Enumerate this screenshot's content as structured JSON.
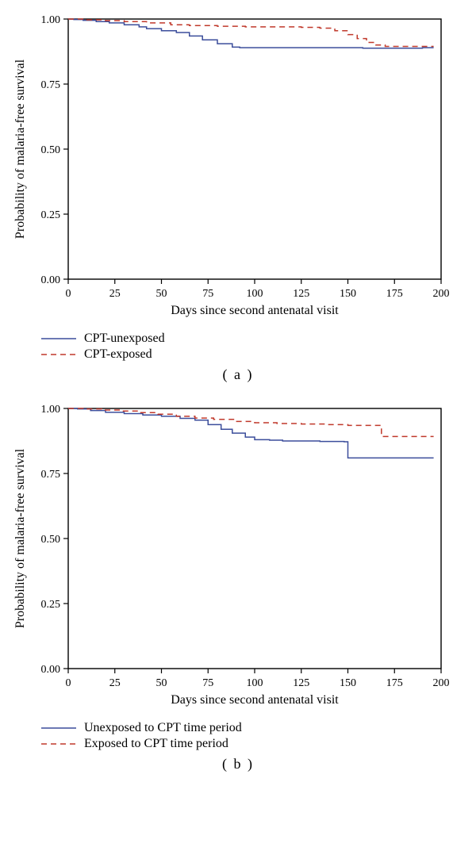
{
  "panel_a": {
    "type": "survival-step",
    "xlabel": "Days since second antenatal visit",
    "ylabel": "Probability of malaria-free survival",
    "xlim": [
      0,
      200
    ],
    "ylim": [
      0,
      1.0
    ],
    "xtick_step": 25,
    "ytick_step": 0.25,
    "ytick_labels": [
      "0.00",
      "0.25",
      "0.50",
      "0.75",
      "1.00"
    ],
    "xtick_labels": [
      "0",
      "25",
      "50",
      "75",
      "100",
      "125",
      "150",
      "175",
      "200"
    ],
    "background_color": "#ffffff",
    "frame_color": "#000000",
    "axis_label_fontsize": 16,
    "tick_fontsize": 14,
    "series": [
      {
        "name": "CPT-unexposed",
        "color": "#3b4d9b",
        "dash": "solid",
        "width": 1.5,
        "points": [
          [
            0,
            1.0
          ],
          [
            3,
            0.998
          ],
          [
            8,
            0.995
          ],
          [
            15,
            0.99
          ],
          [
            22,
            0.985
          ],
          [
            30,
            0.978
          ],
          [
            38,
            0.97
          ],
          [
            42,
            0.963
          ],
          [
            50,
            0.955
          ],
          [
            58,
            0.948
          ],
          [
            65,
            0.935
          ],
          [
            72,
            0.92
          ],
          [
            80,
            0.905
          ],
          [
            88,
            0.892
          ],
          [
            92,
            0.89
          ],
          [
            100,
            0.89
          ],
          [
            120,
            0.89
          ],
          [
            140,
            0.89
          ],
          [
            155,
            0.89
          ],
          [
            158,
            0.888
          ],
          [
            165,
            0.888
          ],
          [
            175,
            0.888
          ],
          [
            190,
            0.89
          ],
          [
            196,
            0.89
          ]
        ]
      },
      {
        "name": "CPT-exposed",
        "color": "#c0392b",
        "dash": "dashed",
        "width": 1.5,
        "points": [
          [
            0,
            1.0
          ],
          [
            10,
            0.997
          ],
          [
            20,
            0.994
          ],
          [
            30,
            0.99
          ],
          [
            42,
            0.985
          ],
          [
            55,
            0.978
          ],
          [
            65,
            0.975
          ],
          [
            80,
            0.972
          ],
          [
            95,
            0.97
          ],
          [
            110,
            0.97
          ],
          [
            125,
            0.968
          ],
          [
            135,
            0.965
          ],
          [
            143,
            0.955
          ],
          [
            150,
            0.94
          ],
          [
            155,
            0.925
          ],
          [
            160,
            0.91
          ],
          [
            165,
            0.9
          ],
          [
            170,
            0.895
          ],
          [
            180,
            0.895
          ],
          [
            196,
            0.895
          ]
        ]
      }
    ],
    "legend_items": [
      {
        "label": "CPT-unexposed",
        "color": "#3b4d9b",
        "dash": "solid"
      },
      {
        "label": "CPT-exposed",
        "color": "#c0392b",
        "dash": "dashed"
      }
    ],
    "panel_tag": "( a )"
  },
  "panel_b": {
    "type": "survival-step",
    "xlabel": "Days since second antenatal visit",
    "ylabel": "Probability of malaria-free survival",
    "xlim": [
      0,
      200
    ],
    "ylim": [
      0,
      1.0
    ],
    "xtick_step": 25,
    "ytick_step": 0.25,
    "ytick_labels": [
      "0.00",
      "0.25",
      "0.50",
      "0.75",
      "1.00"
    ],
    "xtick_labels": [
      "0",
      "25",
      "50",
      "75",
      "100",
      "125",
      "150",
      "175",
      "200"
    ],
    "background_color": "#ffffff",
    "frame_color": "#000000",
    "axis_label_fontsize": 16,
    "tick_fontsize": 14,
    "series": [
      {
        "name": "Unexposed to CPT time period",
        "color": "#3b4d9b",
        "dash": "solid",
        "width": 1.5,
        "points": [
          [
            0,
            1.0
          ],
          [
            5,
            0.998
          ],
          [
            12,
            0.992
          ],
          [
            20,
            0.985
          ],
          [
            30,
            0.98
          ],
          [
            40,
            0.975
          ],
          [
            50,
            0.97
          ],
          [
            60,
            0.962
          ],
          [
            68,
            0.955
          ],
          [
            75,
            0.938
          ],
          [
            82,
            0.92
          ],
          [
            88,
            0.905
          ],
          [
            95,
            0.89
          ],
          [
            100,
            0.88
          ],
          [
            108,
            0.878
          ],
          [
            115,
            0.875
          ],
          [
            125,
            0.875
          ],
          [
            135,
            0.873
          ],
          [
            148,
            0.872
          ],
          [
            150,
            0.81
          ],
          [
            155,
            0.81
          ],
          [
            165,
            0.81
          ],
          [
            180,
            0.81
          ],
          [
            196,
            0.81
          ]
        ]
      },
      {
        "name": "Exposed to CPT time period",
        "color": "#c0392b",
        "dash": "dashed",
        "width": 1.5,
        "points": [
          [
            0,
            1.0
          ],
          [
            8,
            0.998
          ],
          [
            18,
            0.994
          ],
          [
            28,
            0.99
          ],
          [
            38,
            0.984
          ],
          [
            48,
            0.978
          ],
          [
            58,
            0.97
          ],
          [
            68,
            0.963
          ],
          [
            78,
            0.958
          ],
          [
            90,
            0.95
          ],
          [
            100,
            0.945
          ],
          [
            112,
            0.942
          ],
          [
            125,
            0.94
          ],
          [
            138,
            0.938
          ],
          [
            150,
            0.935
          ],
          [
            160,
            0.935
          ],
          [
            168,
            0.892
          ],
          [
            175,
            0.892
          ],
          [
            185,
            0.892
          ],
          [
            196,
            0.892
          ]
        ]
      }
    ],
    "legend_items": [
      {
        "label": "Unexposed to CPT time period",
        "color": "#3b4d9b",
        "dash": "solid"
      },
      {
        "label": "Exposed to CPT time period",
        "color": "#c0392b",
        "dash": "dashed"
      }
    ],
    "panel_tag": "( b )"
  }
}
